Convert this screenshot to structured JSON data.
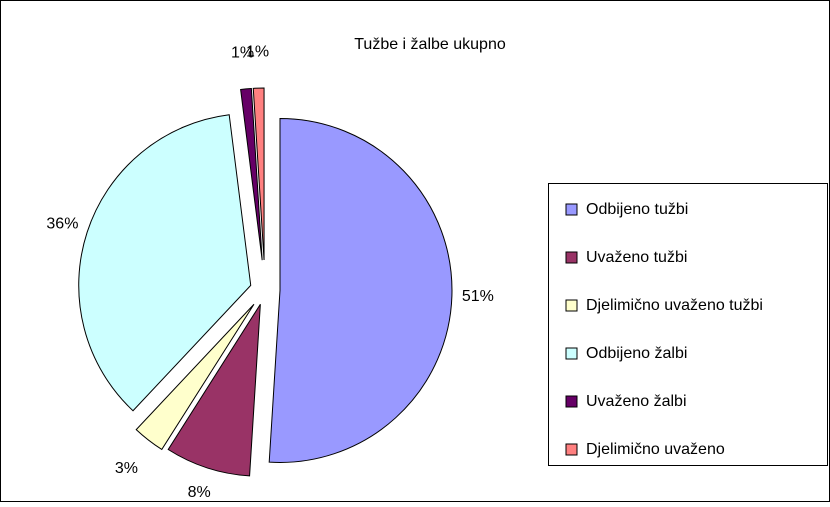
{
  "chart_data": {
    "type": "pie",
    "title": "Tužbe i žalbe ukupno",
    "categories": [
      "Odbijeno tužbi",
      "Uvaženo tužbi",
      "Djelimično uvaženo tužbi",
      "Odbijeno žalbi",
      "Uvaženo žalbi",
      "Djelimično uvaženo"
    ],
    "values": [
      51,
      8,
      3,
      36,
      1,
      1
    ],
    "value_labels": [
      "51%",
      "8%",
      "3%",
      "36%",
      "1%",
      "1%"
    ],
    "colors": [
      "#9999ff",
      "#993366",
      "#ffffcc",
      "#ccffff",
      "#660066",
      "#ff8080"
    ],
    "legend": "right"
  }
}
